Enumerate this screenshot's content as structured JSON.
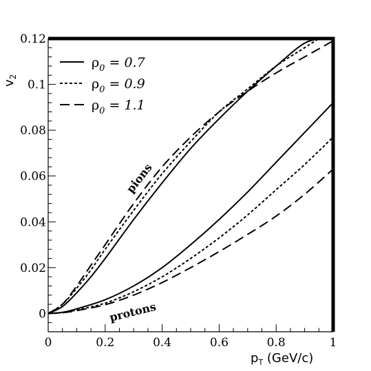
{
  "chart_data": {
    "type": "line",
    "xlabel": "p_T (GeV/c)",
    "ylabel": "v_2",
    "xlim": [
      0,
      1
    ],
    "ylim": [
      -0.008,
      0.12
    ],
    "x_ticks": [
      {
        "value": 0,
        "label": "0"
      },
      {
        "value": 0.2,
        "label": "0.2"
      },
      {
        "value": 0.4,
        "label": "0.4"
      },
      {
        "value": 0.6,
        "label": "0.6"
      },
      {
        "value": 0.8,
        "label": "0.8"
      },
      {
        "value": 1,
        "label": "1"
      }
    ],
    "y_ticks": [
      {
        "value": 0,
        "label": "0"
      },
      {
        "value": 0.02,
        "label": "0.02"
      },
      {
        "value": 0.04,
        "label": "0.04"
      },
      {
        "value": 0.06,
        "label": "0.06"
      },
      {
        "value": 0.08,
        "label": "0.08"
      },
      {
        "value": 0.1,
        "label": "0.1"
      },
      {
        "value": 0.12,
        "label": "0.12"
      }
    ],
    "grid": false,
    "legend_position": "top-left",
    "legend": [
      {
        "rho": "ρ",
        "sub": "0",
        "eq": " = 0.7",
        "style": "solid"
      },
      {
        "rho": "ρ",
        "sub": "0",
        "eq": " = 0.9",
        "style": "dashdot"
      },
      {
        "rho": "ρ",
        "sub": "0",
        "eq": " = 1.1",
        "style": "dashed"
      }
    ],
    "annotations": [
      {
        "text": "pions",
        "x": 0.33,
        "y": 0.058,
        "rotate": -52
      },
      {
        "text": "protons",
        "x": 0.3,
        "y": -0.001,
        "rotate": -14
      }
    ],
    "series": [
      {
        "group": "pions",
        "style": "solid",
        "x": [
          0,
          0.05,
          0.1,
          0.15,
          0.2,
          0.3,
          0.4,
          0.5,
          0.6,
          0.7,
          0.8,
          0.9,
          0.97
        ],
        "y": [
          0,
          0.003,
          0.009,
          0.016,
          0.024,
          0.041,
          0.057,
          0.072,
          0.085,
          0.097,
          0.108,
          0.118,
          0.12
        ]
      },
      {
        "group": "pions",
        "style": "dashdot",
        "x": [
          0,
          0.05,
          0.1,
          0.15,
          0.2,
          0.3,
          0.4,
          0.5,
          0.6,
          0.7,
          0.8,
          0.9,
          0.95
        ],
        "y": [
          0,
          0.004,
          0.011,
          0.019,
          0.028,
          0.045,
          0.061,
          0.075,
          0.088,
          0.098,
          0.108,
          0.116,
          0.12
        ]
      },
      {
        "group": "pions",
        "style": "dashed",
        "x": [
          0,
          0.05,
          0.1,
          0.15,
          0.2,
          0.3,
          0.4,
          0.5,
          0.6,
          0.7,
          0.8,
          0.9,
          1.0
        ],
        "y": [
          0,
          0.004,
          0.012,
          0.021,
          0.03,
          0.048,
          0.064,
          0.077,
          0.088,
          0.097,
          0.105,
          0.112,
          0.119
        ]
      },
      {
        "group": "protons",
        "style": "solid",
        "x": [
          0,
          0.05,
          0.1,
          0.2,
          0.3,
          0.4,
          0.5,
          0.6,
          0.7,
          0.8,
          0.9,
          1.0
        ],
        "y": [
          0,
          0.0005,
          0.002,
          0.006,
          0.012,
          0.02,
          0.03,
          0.041,
          0.053,
          0.066,
          0.079,
          0.092
        ]
      },
      {
        "group": "protons",
        "style": "dashdot",
        "x": [
          0,
          0.05,
          0.1,
          0.2,
          0.3,
          0.4,
          0.5,
          0.6,
          0.7,
          0.8,
          0.9,
          1.0
        ],
        "y": [
          0,
          0.0004,
          0.0015,
          0.0045,
          0.0095,
          0.016,
          0.024,
          0.033,
          0.043,
          0.054,
          0.065,
          0.077
        ]
      },
      {
        "group": "protons",
        "style": "dashed",
        "x": [
          0,
          0.05,
          0.1,
          0.2,
          0.3,
          0.4,
          0.5,
          0.6,
          0.7,
          0.8,
          0.9,
          1.0
        ],
        "y": [
          0,
          0.0003,
          0.0012,
          0.0038,
          0.008,
          0.0135,
          0.02,
          0.027,
          0.0345,
          0.0425,
          0.052,
          0.063
        ]
      }
    ]
  }
}
